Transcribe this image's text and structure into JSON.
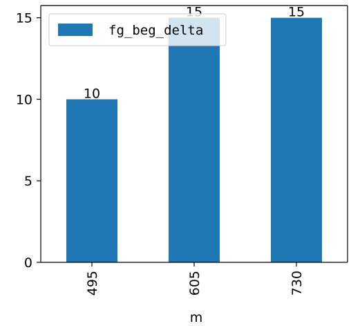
{
  "chart_data": {
    "type": "bar",
    "categories": [
      "495",
      "605",
      "730"
    ],
    "series": [
      {
        "name": "fg_beg_delta",
        "values": [
          10,
          15,
          15
        ],
        "color": "#1f77b4"
      }
    ],
    "bar_labels": [
      "10",
      "15",
      "15"
    ],
    "xlabel": "m",
    "ylabel": "",
    "ylim": [
      0,
      15.75
    ],
    "yticks": [
      0,
      5,
      10,
      15
    ],
    "xtick_rotation": 90,
    "grid": false,
    "legend": {
      "position": "upper-left"
    }
  }
}
